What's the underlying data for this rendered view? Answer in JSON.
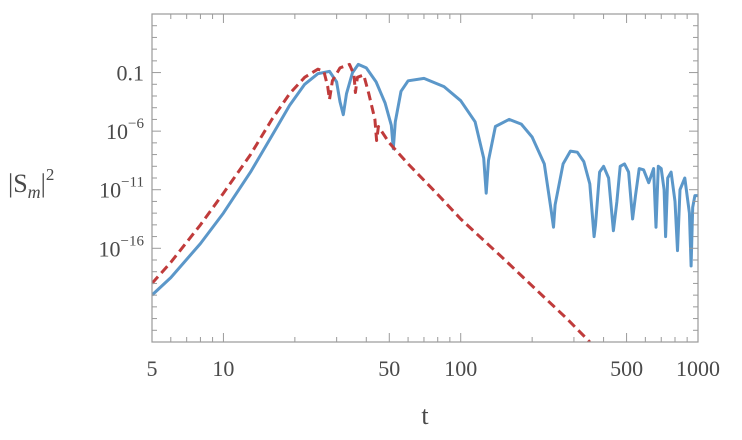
{
  "chart_data": {
    "type": "line",
    "title": "",
    "xlabel": "t",
    "ylabel_base": "|S",
    "ylabel_sub": "m",
    "ylabel_close": "|",
    "ylabel_sup": "2",
    "xscale": "log",
    "yscale": "log",
    "xlim": [
      5,
      1000
    ],
    "ylim_log10": [
      -24,
      4
    ],
    "x_ticks": [
      {
        "value": 5,
        "label": "5"
      },
      {
        "value": 10,
        "label": "10"
      },
      {
        "value": 50,
        "label": "50"
      },
      {
        "value": 100,
        "label": "100"
      },
      {
        "value": 500,
        "label": "500"
      },
      {
        "value": 1000,
        "label": "1000"
      }
    ],
    "y_ticks": [
      {
        "value_log10": -1,
        "base": "0.1",
        "sup": ""
      },
      {
        "value_log10": -6,
        "base": "10",
        "sup": "−6"
      },
      {
        "value_log10": -11,
        "base": "10",
        "sup": "−11"
      },
      {
        "value_log10": -16,
        "base": "10",
        "sup": "−16"
      }
    ],
    "grid": false,
    "legend": "none",
    "series": [
      {
        "color": "#5b97c9",
        "dash": "solid",
        "points": [
          [
            5,
            -20.0
          ],
          [
            6,
            -18.5
          ],
          [
            8,
            -15.6
          ],
          [
            10,
            -13.0
          ],
          [
            13,
            -9.5
          ],
          [
            16,
            -6.4
          ],
          [
            19,
            -3.8
          ],
          [
            22,
            -2.0
          ],
          [
            25,
            -1.1
          ],
          [
            28,
            -0.9
          ],
          [
            30,
            -1.8
          ],
          [
            31,
            -3.5
          ],
          [
            32,
            -4.6
          ],
          [
            33,
            -2.8
          ],
          [
            35,
            -1.0
          ],
          [
            37,
            -0.3
          ],
          [
            40,
            -0.6
          ],
          [
            44,
            -1.8
          ],
          [
            48,
            -3.6
          ],
          [
            51,
            -5.5
          ],
          [
            52,
            -7.5
          ],
          [
            53,
            -5.2
          ],
          [
            56,
            -2.6
          ],
          [
            60,
            -1.7
          ],
          [
            70,
            -1.5
          ],
          [
            85,
            -2.2
          ],
          [
            100,
            -3.4
          ],
          [
            115,
            -5.2
          ],
          [
            125,
            -8.3
          ],
          [
            128,
            -11.3
          ],
          [
            131,
            -8.5
          ],
          [
            140,
            -5.6
          ],
          [
            160,
            -5.0
          ],
          [
            180,
            -5.4
          ],
          [
            200,
            -6.5
          ],
          [
            225,
            -8.8
          ],
          [
            240,
            -12.6
          ],
          [
            246,
            -14.2
          ],
          [
            250,
            -12.3
          ],
          [
            270,
            -8.8
          ],
          [
            290,
            -7.7
          ],
          [
            310,
            -7.8
          ],
          [
            330,
            -8.6
          ],
          [
            350,
            -10.5
          ],
          [
            365,
            -15.0
          ],
          [
            370,
            -14.0
          ],
          [
            385,
            -9.5
          ],
          [
            400,
            -9.0
          ],
          [
            420,
            -10.0
          ],
          [
            440,
            -14.5
          ],
          [
            455,
            -12.0
          ],
          [
            470,
            -9.0
          ],
          [
            490,
            -8.8
          ],
          [
            510,
            -9.5
          ],
          [
            530,
            -13.5
          ],
          [
            545,
            -11.5
          ],
          [
            565,
            -9.2
          ],
          [
            590,
            -9.3
          ],
          [
            620,
            -10.4
          ],
          [
            650,
            -9.2
          ],
          [
            665,
            -14.2
          ],
          [
            680,
            -9.0
          ],
          [
            700,
            -9.2
          ],
          [
            720,
            -11.0
          ],
          [
            730,
            -15.0
          ],
          [
            745,
            -10.0
          ],
          [
            770,
            -9.5
          ],
          [
            800,
            -12.0
          ],
          [
            820,
            -16.2
          ],
          [
            840,
            -11.0
          ],
          [
            880,
            -10.0
          ],
          [
            920,
            -13.0
          ],
          [
            935,
            -17.5
          ],
          [
            950,
            -12.5
          ],
          [
            970,
            -11.5
          ],
          [
            1000,
            -11.5
          ]
        ]
      },
      {
        "color": "#c03b3b",
        "dash": "dashed",
        "points": [
          [
            5,
            -19.0
          ],
          [
            6,
            -17.2
          ],
          [
            8,
            -14.0
          ],
          [
            10,
            -11.3
          ],
          [
            13,
            -8.0
          ],
          [
            16,
            -5.0
          ],
          [
            19,
            -2.8
          ],
          [
            22,
            -1.4
          ],
          [
            25,
            -0.7
          ],
          [
            26.5,
            -0.9
          ],
          [
            27.5,
            -2.2
          ],
          [
            28,
            -3.3
          ],
          [
            28.8,
            -1.7
          ],
          [
            31,
            -0.6
          ],
          [
            34,
            -0.3
          ],
          [
            35.5,
            -1.2
          ],
          [
            36,
            -2.7
          ],
          [
            36.7,
            -1.4
          ],
          [
            39,
            -1.2
          ],
          [
            41,
            -2.8
          ],
          [
            43.5,
            -5.0
          ],
          [
            44.2,
            -6.8
          ],
          [
            45,
            -5.6
          ],
          [
            50,
            -7.0
          ],
          [
            60,
            -8.8
          ],
          [
            80,
            -11.4
          ],
          [
            100,
            -13.5
          ],
          [
            150,
            -16.8
          ],
          [
            200,
            -19.2
          ],
          [
            280,
            -22.0
          ],
          [
            350,
            -24.0
          ]
        ]
      }
    ]
  }
}
